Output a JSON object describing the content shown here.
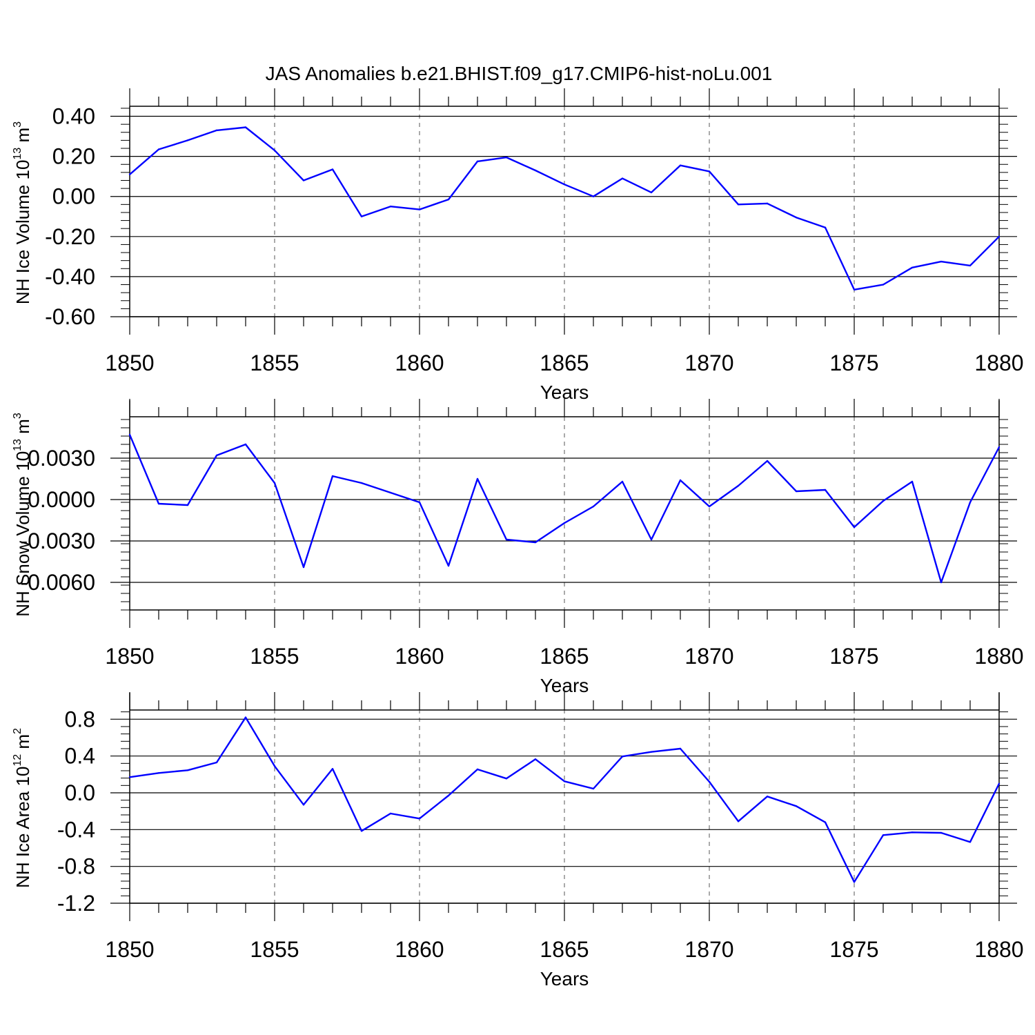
{
  "title": "JAS Anomalies b.e21.BHIST.f09_g17.CMIP6-hist-noLu.001",
  "colors": {
    "line": "#0000ff",
    "axis": "#000000",
    "grid": "#555555"
  },
  "chart_data": [
    {
      "type": "line",
      "ylabel": {
        "text": "NH Ice Volume 10",
        "exp": "13",
        "unit": " m",
        "unit_exp": "3"
      },
      "xlabel": "Years",
      "xlim": [
        1850,
        1880
      ],
      "ylim": [
        -0.6,
        0.45
      ],
      "yticks": [
        0.4,
        0.2,
        0.0,
        -0.2,
        -0.4,
        -0.6
      ],
      "ytick_labels": [
        "0.40",
        "0.20",
        "0.00",
        "-0.20",
        "-0.40",
        "-0.60"
      ],
      "xticks": [
        1850,
        1855,
        1860,
        1865,
        1870,
        1875,
        1880
      ],
      "xtick_labels": [
        "1850",
        "1855",
        "1860",
        "1865",
        "1870",
        "1875",
        "1880"
      ],
      "x": [
        1850,
        1851,
        1852,
        1853,
        1854,
        1855,
        1856,
        1857,
        1858,
        1859,
        1860,
        1861,
        1862,
        1863,
        1864,
        1865,
        1866,
        1867,
        1868,
        1869,
        1870,
        1871,
        1872,
        1873,
        1874,
        1875,
        1876,
        1877,
        1878,
        1879,
        1880
      ],
      "values": [
        0.11,
        0.235,
        0.28,
        0.33,
        0.345,
        0.23,
        0.08,
        0.135,
        -0.1,
        -0.05,
        -0.065,
        -0.015,
        0.175,
        0.195,
        0.13,
        0.06,
        0.0,
        0.09,
        0.02,
        0.155,
        0.125,
        -0.04,
        -0.035,
        -0.105,
        -0.155,
        -0.465,
        -0.44,
        -0.355,
        -0.325,
        -0.345,
        -0.2
      ]
    },
    {
      "type": "line",
      "ylabel": {
        "text": "NH Snow Volume 10",
        "exp": "13",
        "unit": " m",
        "unit_exp": "3"
      },
      "xlabel": "Years",
      "xlim": [
        1850,
        1880
      ],
      "ylim": [
        -0.008,
        0.006
      ],
      "yticks": [
        0.003,
        0.0,
        -0.003,
        -0.006
      ],
      "ytick_labels": [
        "0.0030",
        "0.0000",
        "-0.0030",
        "-0.0060"
      ],
      "xticks": [
        1850,
        1855,
        1860,
        1865,
        1870,
        1875,
        1880
      ],
      "xtick_labels": [
        "1850",
        "1855",
        "1860",
        "1865",
        "1870",
        "1875",
        "1880"
      ],
      "x": [
        1850,
        1851,
        1852,
        1853,
        1854,
        1855,
        1856,
        1857,
        1858,
        1859,
        1860,
        1861,
        1862,
        1863,
        1864,
        1865,
        1866,
        1867,
        1868,
        1869,
        1870,
        1871,
        1872,
        1873,
        1874,
        1875,
        1876,
        1877,
        1878,
        1879,
        1880
      ],
      "values": [
        0.0047,
        -0.0003,
        -0.0004,
        0.0032,
        0.004,
        0.0012,
        -0.0049,
        0.0017,
        0.0012,
        0.0005,
        -0.0002,
        -0.0048,
        0.0015,
        -0.0029,
        -0.0031,
        -0.0017,
        -0.0005,
        0.0013,
        -0.0029,
        0.0014,
        -0.0005,
        0.001,
        0.0028,
        0.0006,
        0.0007,
        -0.002,
        -0.0001,
        0.0013,
        -0.006,
        -0.0002,
        0.0038
      ]
    },
    {
      "type": "line",
      "ylabel": {
        "text": "NH Ice Area 10",
        "exp": "12",
        "unit": " m",
        "unit_exp": "2"
      },
      "xlabel": "Years",
      "xlim": [
        1850,
        1880
      ],
      "ylim": [
        -1.2,
        0.9
      ],
      "yticks": [
        0.8,
        0.4,
        0.0,
        -0.4,
        -0.8,
        -1.2
      ],
      "ytick_labels": [
        "0.8",
        "0.4",
        "0.0",
        "-0.4",
        "-0.8",
        "-1.2"
      ],
      "xticks": [
        1850,
        1855,
        1860,
        1865,
        1870,
        1875,
        1880
      ],
      "xtick_labels": [
        "1850",
        "1855",
        "1860",
        "1865",
        "1870",
        "1875",
        "1880"
      ],
      "x": [
        1850,
        1851,
        1852,
        1853,
        1854,
        1855,
        1856,
        1857,
        1858,
        1859,
        1860,
        1861,
        1862,
        1863,
        1864,
        1865,
        1866,
        1867,
        1868,
        1869,
        1870,
        1871,
        1872,
        1873,
        1874,
        1875,
        1876,
        1877,
        1878,
        1879,
        1880
      ],
      "values": [
        0.17,
        0.215,
        0.245,
        0.33,
        0.82,
        0.29,
        -0.13,
        0.26,
        -0.415,
        -0.225,
        -0.28,
        -0.03,
        0.255,
        0.155,
        0.365,
        0.125,
        0.045,
        0.395,
        0.445,
        0.48,
        0.12,
        -0.31,
        -0.04,
        -0.145,
        -0.32,
        -0.97,
        -0.46,
        -0.43,
        -0.435,
        -0.535,
        0.1
      ]
    }
  ]
}
